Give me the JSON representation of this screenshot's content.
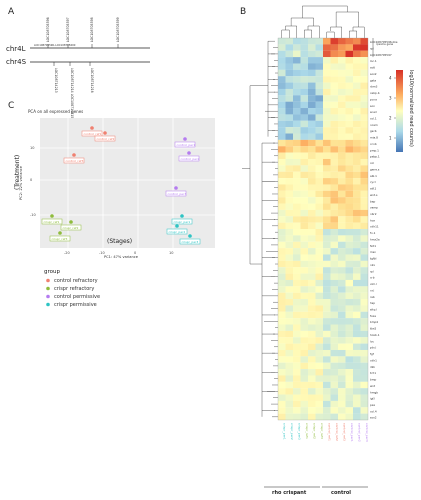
{
  "panelA": {
    "label": "A",
    "chr4L": "chr4L",
    "chr4S": "chr4S",
    "top_labels": [
      "LOC108705596",
      "LOC108705597",
      "LOC108705598",
      "LOC108705599"
    ],
    "range_label": "LOC108705596–LOC108705600",
    "bottom_labels": [
      "LOC108714213",
      "LOC108714214 LOC108714215",
      "LOC108714216"
    ]
  },
  "panelB": {
    "label": "B",
    "colorbar_label": "log10(normalized read counts)",
    "colorbar_ticks": [
      "4",
      "3",
      "2",
      "1"
    ],
    "top_gene_labels": [
      "LOC108705596-like",
      "rpl",
      "LOC108705597"
    ],
    "side_note": "rpsome gene",
    "row_labels": [
      "loc.1",
      "actl",
      "sox2",
      "gsta",
      "rbm3",
      "cebp.b",
      "pcna",
      "sox",
      "snail",
      "col.1",
      "ncam",
      "gscb",
      "mia.8",
      "ccnb",
      "pmp.1",
      "pabp.1",
      "col",
      "gene.s",
      "abl.1",
      "cycl",
      "atf.1",
      "wnt.s",
      "bap",
      "vamp",
      "nbr2",
      "hox",
      "cdh11",
      "fn.1",
      "hmx2a",
      "fzd1",
      "msx",
      "tgfbl",
      "nkx",
      "rpl",
      "crb",
      "vim.l",
      "nr.l",
      "rab",
      "hsp",
      "sfrp.l",
      "foxa",
      "bmp4",
      "tbx5",
      "hoxb.1",
      "loc",
      "ptn.l",
      "fgf",
      "cdh1",
      "dkk",
      "tcf.1",
      "bmp",
      "wnt",
      "hmgb",
      "igf.l",
      "pax",
      "col.4",
      "sox2"
    ],
    "group_left": "rho crispant",
    "group_right": "control"
  },
  "panelC": {
    "label": "C",
    "title": "PCA on all expressed genes",
    "xlabel": "PC1: 47% variance",
    "ylabel": "PC2: 22% variance",
    "annot_treatment": "(Treatment)",
    "annot_stages": "(Stages)",
    "legend_title": "group",
    "legend_items": [
      "control refractory",
      "crispr refractory",
      "control permissive",
      "crispr permissive"
    ],
    "legend_colors": [
      "#f08070",
      "#8fbc3c",
      "#b57cf0",
      "#2ec4c4"
    ],
    "x_ticks": [
      "-20",
      "-10",
      "0",
      "10"
    ],
    "y_ticks": [
      "10",
      "0",
      "-10"
    ],
    "point_labels": [
      "control_ref1",
      "control_ref2",
      "control_ref3",
      "crispr_ref1",
      "crispr_ref2",
      "crispr_ref3",
      "control_per1",
      "control_per2",
      "control_per3",
      "crispr_per1",
      "crispr_per2",
      "crispr_per3"
    ]
  }
}
